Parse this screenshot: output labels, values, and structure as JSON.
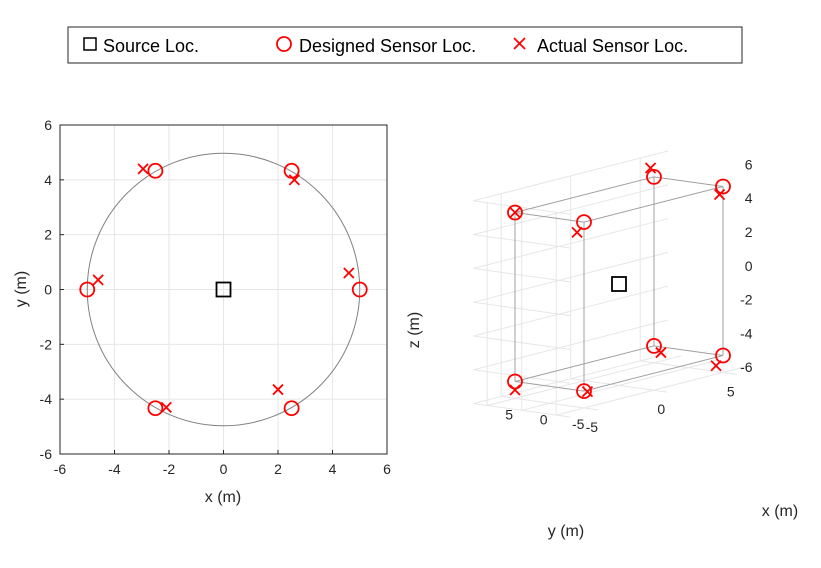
{
  "legend": {
    "entries": [
      {
        "label": "Source Loc.",
        "marker": "square",
        "color": "#000000"
      },
      {
        "label": "Designed Sensor Loc.",
        "marker": "circle",
        "color": "#ff0000"
      },
      {
        "label": "Actual Sensor Loc.",
        "marker": "x",
        "color": "#ff0000"
      }
    ],
    "placement": "top-center"
  },
  "colors": {
    "sensor": "#ff0000",
    "source": "#000000",
    "circle": "#808080",
    "grid": "#e6e6e6",
    "cube": "#a0a0a0"
  },
  "chart_data": [
    {
      "type": "scatter",
      "xlabel": "x (m)",
      "ylabel": "y (m)",
      "xlim": [
        -6,
        6
      ],
      "ylim": [
        -6,
        6
      ],
      "xticks": [
        "-6",
        "-4",
        "-2",
        "0",
        "2",
        "4",
        "6"
      ],
      "yticks": [
        "-6",
        "-4",
        "-2",
        "0",
        "2",
        "4",
        "6"
      ],
      "grid": true,
      "reference_circle_radius": 5,
      "series": [
        {
          "name": "Source Loc.",
          "marker": "square",
          "points": [
            [
              0,
              0
            ]
          ]
        },
        {
          "name": "Designed Sensor Loc.",
          "marker": "circle",
          "points": [
            [
              5,
              0
            ],
            [
              2.5,
              4.33
            ],
            [
              -2.5,
              4.33
            ],
            [
              -5,
              0
            ],
            [
              -2.5,
              -4.33
            ],
            [
              2.5,
              -4.33
            ]
          ]
        },
        {
          "name": "Actual Sensor Loc.",
          "marker": "x",
          "points": [
            [
              4.6,
              0.6
            ],
            [
              2.6,
              4.0
            ],
            [
              -2.95,
              4.4
            ],
            [
              -4.6,
              0.35
            ],
            [
              -2.1,
              -4.3
            ],
            [
              2.0,
              -3.65
            ]
          ]
        }
      ]
    },
    {
      "type": "scatter3d",
      "xlabel": "x (m)",
      "ylabel": "y (m)",
      "zlabel": "z (m)",
      "xlim": [
        -7,
        7
      ],
      "ylim": [
        -7,
        7
      ],
      "zlim": [
        -6,
        6
      ],
      "xticks": [
        "-5",
        "0",
        "5"
      ],
      "yticks": [
        "5",
        "0",
        "-5"
      ],
      "zticks": [
        "-6",
        "-4",
        "-2",
        "0",
        "2",
        "4",
        "6"
      ],
      "grid": true,
      "series": [
        {
          "name": "Source Loc.",
          "marker": "square",
          "points": [
            [
              0,
              0,
              0
            ]
          ]
        },
        {
          "name": "Designed Sensor Loc.",
          "marker": "circle",
          "points": [
            [
              5,
              5,
              5
            ],
            [
              -5,
              5,
              5
            ],
            [
              5,
              -5,
              5
            ],
            [
              -5,
              -5,
              5
            ],
            [
              5,
              5,
              -5
            ],
            [
              -5,
              5,
              -5
            ],
            [
              5,
              -5,
              -5
            ],
            [
              -5,
              -5,
              -5
            ]
          ]
        },
        {
          "name": "Actual Sensor Loc.",
          "marker": "x",
          "points": [
            [
              5.5,
              5,
              5.5
            ],
            [
              -4.5,
              5,
              4.5
            ],
            [
              5,
              -5,
              5
            ],
            [
              -5,
              -5.5,
              4.5
            ],
            [
              5,
              5.5,
              -5.5
            ],
            [
              -5,
              4.5,
              -5.5
            ],
            [
              5,
              -5,
              -5.5
            ],
            [
              -5.5,
              -5,
              -5
            ]
          ]
        }
      ]
    }
  ]
}
